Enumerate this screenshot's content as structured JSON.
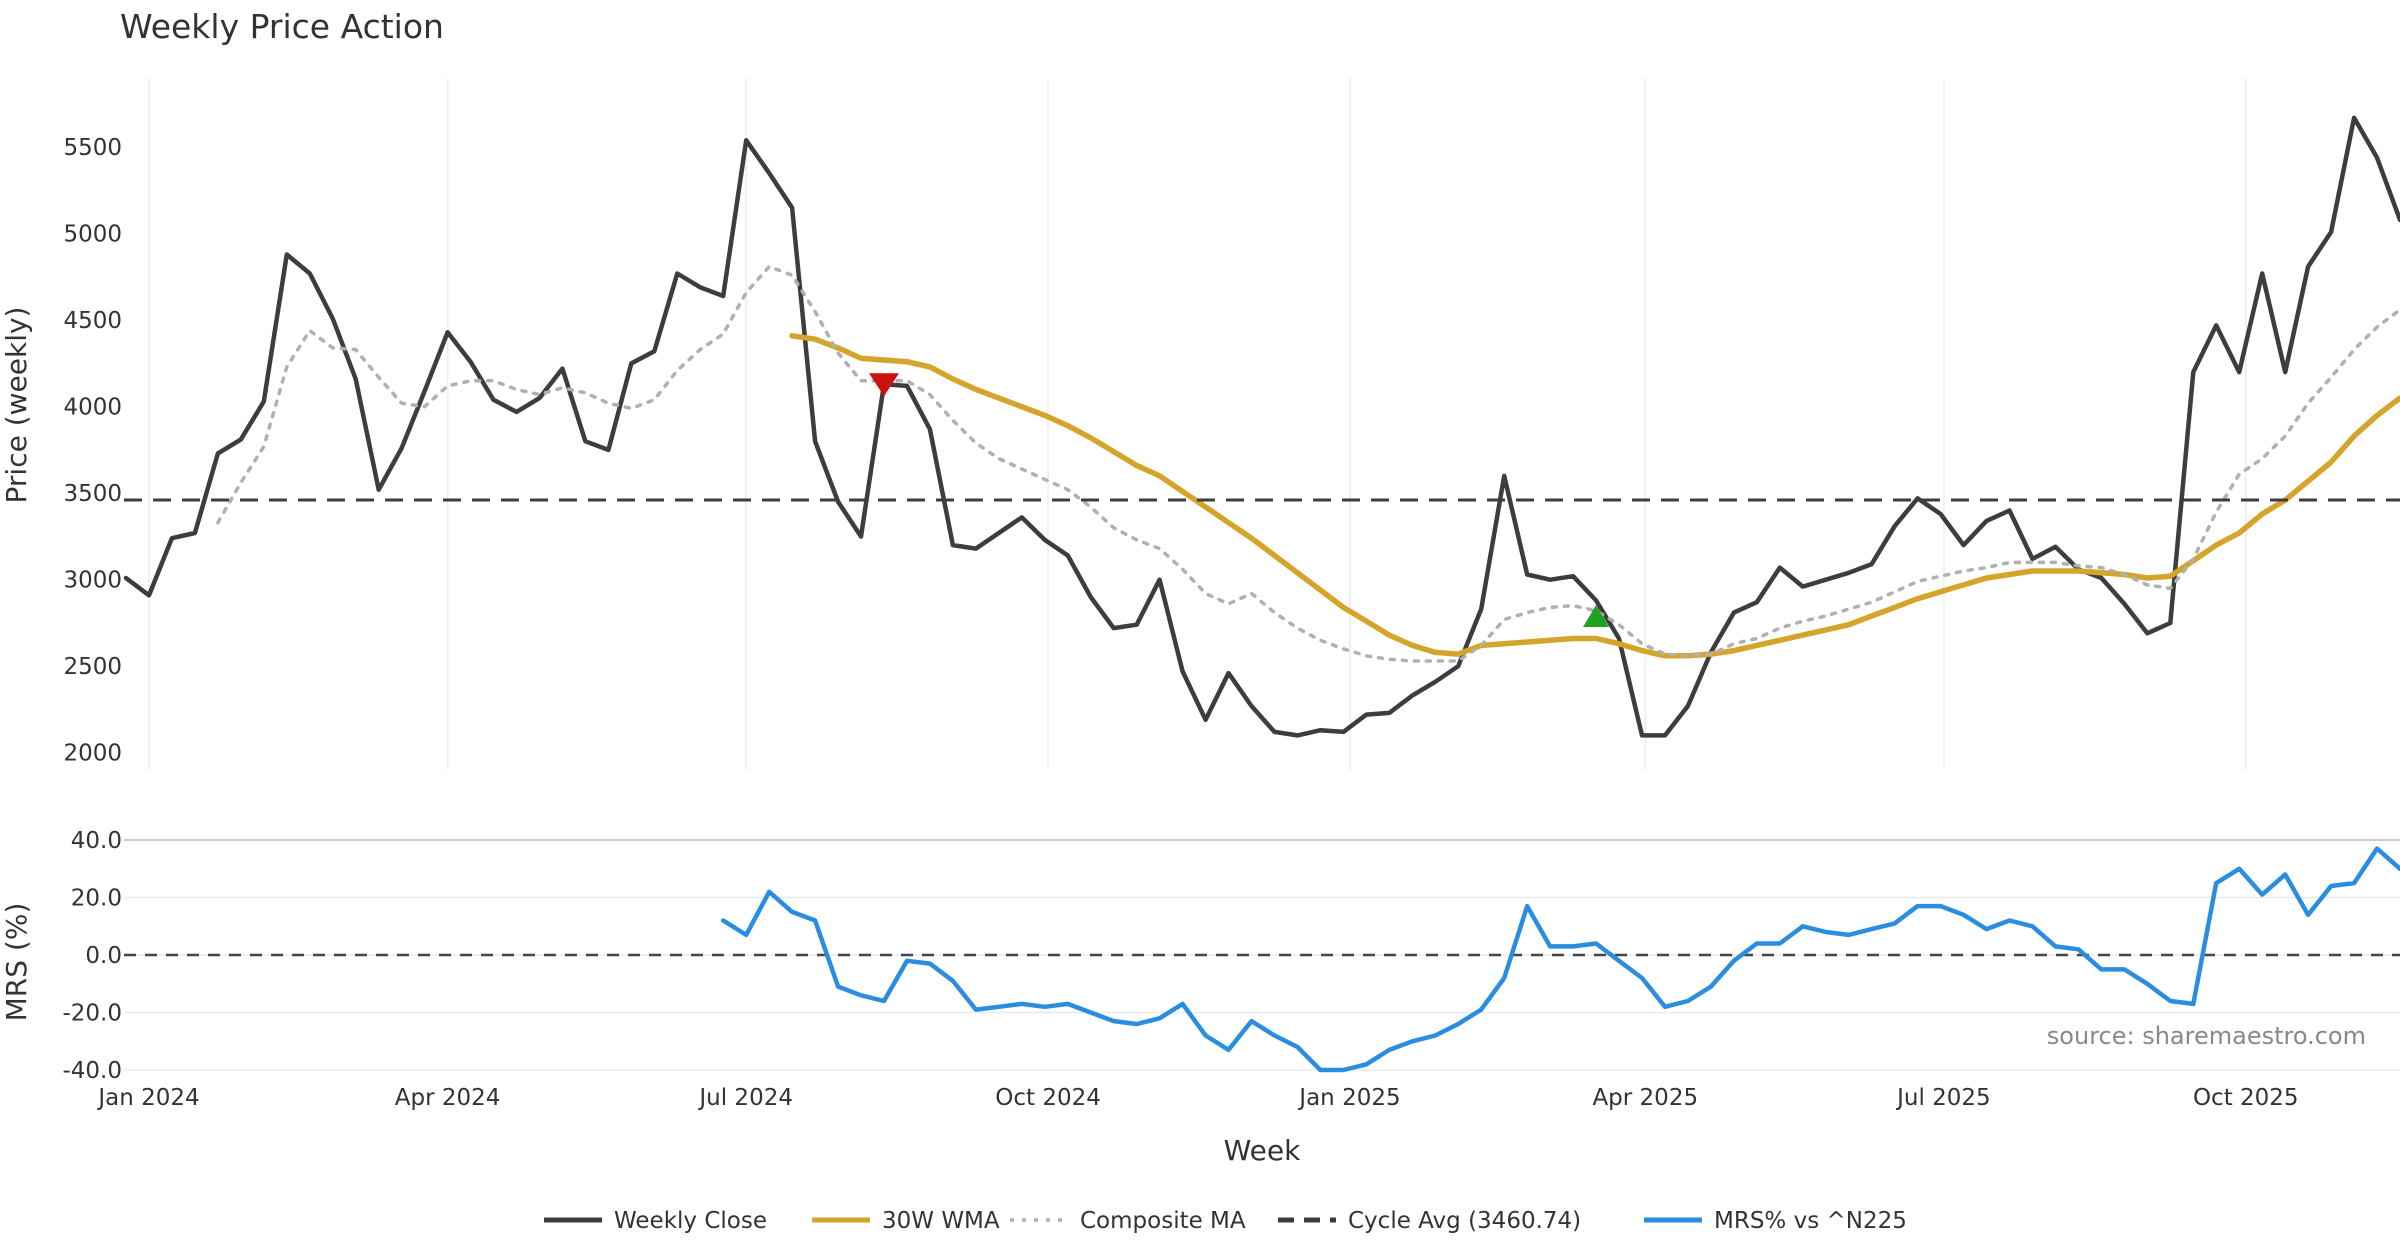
{
  "chart_data": {
    "type": "line",
    "title": "Weekly Price Action",
    "xlabel": "Week",
    "source": "source: sharemaestro.com",
    "x_ticks": [
      "Jan 2024",
      "Apr 2024",
      "Jul 2024",
      "Oct 2024",
      "Jan 2025",
      "Apr 2025",
      "Jul 2025",
      "Oct 2025"
    ],
    "x_range": [
      "2023-12-25",
      "2025-11-17"
    ],
    "x_dates": [
      "2023-12-25",
      "2024-01-01",
      "2024-01-08",
      "2024-01-15",
      "2024-01-22",
      "2024-01-29",
      "2024-02-05",
      "2024-02-12",
      "2024-02-19",
      "2024-02-26",
      "2024-03-04",
      "2024-03-11",
      "2024-03-18",
      "2024-03-25",
      "2024-04-01",
      "2024-04-08",
      "2024-04-15",
      "2024-04-22",
      "2024-04-29",
      "2024-05-06",
      "2024-05-13",
      "2024-05-20",
      "2024-05-27",
      "2024-06-03",
      "2024-06-10",
      "2024-06-17",
      "2024-06-24",
      "2024-07-01",
      "2024-07-08",
      "2024-07-15",
      "2024-07-22",
      "2024-07-29",
      "2024-08-05",
      "2024-08-12",
      "2024-08-19",
      "2024-08-26",
      "2024-09-02",
      "2024-09-09",
      "2024-09-16",
      "2024-09-23",
      "2024-09-30",
      "2024-10-07",
      "2024-10-14",
      "2024-10-21",
      "2024-10-28",
      "2024-11-04",
      "2024-11-11",
      "2024-11-18",
      "2024-11-25",
      "2024-12-02",
      "2024-12-09",
      "2024-12-16",
      "2024-12-23",
      "2024-12-30",
      "2025-01-06",
      "2025-01-13",
      "2025-01-20",
      "2025-01-27",
      "2025-02-03",
      "2025-02-10",
      "2025-02-17",
      "2025-02-24",
      "2025-03-03",
      "2025-03-10",
      "2025-03-17",
      "2025-03-24",
      "2025-03-31",
      "2025-04-07",
      "2025-04-14",
      "2025-04-21",
      "2025-04-28",
      "2025-05-05",
      "2025-05-12",
      "2025-05-19",
      "2025-05-26",
      "2025-06-02",
      "2025-06-09",
      "2025-06-16",
      "2025-06-23",
      "2025-06-30",
      "2025-07-07",
      "2025-07-14",
      "2025-07-21",
      "2025-07-28",
      "2025-08-04",
      "2025-08-11",
      "2025-08-18",
      "2025-08-25",
      "2025-09-01",
      "2025-09-08",
      "2025-09-15",
      "2025-09-22",
      "2025-09-29",
      "2025-10-06",
      "2025-10-13",
      "2025-10-20",
      "2025-10-27",
      "2025-11-03",
      "2025-11-10",
      "2025-11-17"
    ],
    "price_panel": {
      "ylabel": "Price (weekly)",
      "ylim": [
        1900,
        5900
      ],
      "y_ticks": [
        2000,
        2500,
        3000,
        3500,
        4000,
        4500,
        5000,
        5500
      ],
      "series": [
        {
          "name": "Weekly Close",
          "color": "#3d3d3d",
          "style": "solid",
          "values": [
            3010,
            2910,
            3240,
            3270,
            3730,
            3810,
            4030,
            4880,
            4770,
            4510,
            4160,
            3520,
            3760,
            4090,
            4430,
            4260,
            4040,
            3970,
            4050,
            4220,
            3800,
            3750,
            4250,
            4320,
            4770,
            4690,
            4640,
            5540,
            5350,
            5150,
            3800,
            3450,
            3250,
            4130,
            4120,
            3870,
            3200,
            3180,
            3270,
            3360,
            3230,
            3140,
            2900,
            2720,
            2740,
            3000,
            2470,
            2190,
            2460,
            2270,
            2120,
            2100,
            2130,
            2120,
            2220,
            2230,
            2330,
            2410,
            2500,
            2830,
            3600,
            3030,
            3000,
            3020,
            2880,
            2660,
            2100,
            2100,
            2270,
            2580,
            2810,
            2870,
            3070,
            2960,
            3000,
            3040,
            3090,
            3310,
            3470,
            3380,
            3200,
            3340,
            3400,
            3120,
            3190,
            3060,
            3010,
            2860,
            2690,
            2750,
            4200,
            4470,
            4200,
            4770,
            4200,
            4810,
            5010,
            5670,
            5440,
            5080
          ]
        },
        {
          "name": "30W WMA",
          "color": "#d4a52a",
          "style": "solid",
          "values": [
            null,
            null,
            null,
            null,
            null,
            null,
            null,
            null,
            null,
            null,
            null,
            null,
            null,
            null,
            null,
            null,
            null,
            null,
            null,
            null,
            null,
            null,
            null,
            null,
            null,
            null,
            null,
            null,
            null,
            4410,
            4390,
            4340,
            4280,
            4270,
            4260,
            4230,
            4160,
            4100,
            4050,
            4000,
            3950,
            3890,
            3820,
            3740,
            3660,
            3600,
            3510,
            3420,
            3330,
            3240,
            3140,
            3040,
            2940,
            2840,
            2760,
            2680,
            2620,
            2580,
            2570,
            2620,
            2630,
            2640,
            2650,
            2660,
            2660,
            2630,
            2590,
            2560,
            2560,
            2570,
            2590,
            2620,
            2650,
            2680,
            2710,
            2740,
            2790,
            2840,
            2890,
            2930,
            2970,
            3010,
            3030,
            3050,
            3050,
            3050,
            3040,
            3030,
            3010,
            3020,
            3110,
            3200,
            3270,
            3380,
            3460,
            3570,
            3680,
            3830,
            3950,
            4050
          ]
        },
        {
          "name": "Composite MA",
          "color": "#b0b0b0",
          "style": "dotted",
          "values": [
            null,
            null,
            null,
            null,
            3330,
            3560,
            3770,
            4230,
            4440,
            4340,
            4330,
            4170,
            4020,
            4000,
            4120,
            4150,
            4150,
            4100,
            4070,
            4110,
            4080,
            4020,
            3990,
            4040,
            4210,
            4330,
            4420,
            4660,
            4810,
            4760,
            4550,
            4310,
            4150,
            4150,
            4150,
            4070,
            3920,
            3790,
            3700,
            3640,
            3580,
            3520,
            3420,
            3300,
            3230,
            3180,
            3060,
            2920,
            2860,
            2920,
            2810,
            2720,
            2650,
            2600,
            2560,
            2540,
            2530,
            2530,
            2530,
            2620,
            2770,
            2810,
            2840,
            2850,
            2820,
            2740,
            2630,
            2570,
            2560,
            2570,
            2630,
            2660,
            2720,
            2760,
            2790,
            2830,
            2870,
            2930,
            2990,
            3020,
            3050,
            3070,
            3100,
            3100,
            3100,
            3080,
            3070,
            3030,
            2970,
            2950,
            3120,
            3390,
            3610,
            3700,
            3830,
            4020,
            4170,
            4330,
            4460,
            4560
          ]
        },
        {
          "name": "Cycle Avg (3460.74)",
          "color": "#3d3d3d",
          "style": "dashed",
          "constant": 3460.74
        }
      ],
      "annotations": [
        {
          "type": "sell-marker",
          "x": "2024-08-12",
          "y": 4130,
          "color": "#cc1111"
        },
        {
          "type": "buy-marker",
          "x": "2025-03-17",
          "y": 2790,
          "color": "#21a121"
        }
      ]
    },
    "mrs_panel": {
      "ylabel": "MRS (%)",
      "ylim": [
        -40,
        40
      ],
      "y_ticks": [
        -40.0,
        -20.0,
        0.0,
        20.0,
        40.0
      ],
      "y_tick_labels": [
        "-40.0",
        "-20.0",
        "0.0",
        "20.0",
        "40.0"
      ],
      "zero_line": 0,
      "series": [
        {
          "name": "MRS% vs ^N225",
          "color": "#2b8de0",
          "style": "solid",
          "values": [
            null,
            null,
            null,
            null,
            null,
            null,
            null,
            null,
            null,
            null,
            null,
            null,
            null,
            null,
            null,
            null,
            null,
            null,
            null,
            null,
            null,
            null,
            null,
            null,
            null,
            null,
            12,
            7,
            22,
            15,
            12,
            -11,
            -14,
            -16,
            -2,
            -3,
            -9,
            -19,
            -18,
            -17,
            -18,
            -17,
            -20,
            -23,
            -24,
            -22,
            -17,
            -28,
            -33,
            -23,
            -28,
            -32,
            -40,
            -40,
            -38,
            -33,
            -30,
            -28,
            -24,
            -19,
            -8,
            17,
            3,
            3,
            4,
            -2,
            -8,
            -18,
            -16,
            -11,
            -2,
            4,
            4,
            10,
            8,
            7,
            9,
            11,
            17,
            17,
            14,
            9,
            12,
            10,
            3,
            2,
            -5,
            -5,
            -10,
            -16,
            -17,
            25,
            30,
            21,
            28,
            14,
            24,
            25,
            37,
            30
          ]
        }
      ]
    },
    "legend": {
      "placement": "bottom-center",
      "entries": [
        {
          "label": "Weekly Close",
          "color": "#3d3d3d",
          "style": "solid"
        },
        {
          "label": "30W WMA",
          "color": "#d4a52a",
          "style": "solid"
        },
        {
          "label": "Composite MA",
          "color": "#b0b0b0",
          "style": "dotted"
        },
        {
          "label": "Cycle Avg (3460.74)",
          "color": "#3d3d3d",
          "style": "dashed"
        },
        {
          "label": "MRS% vs ^N225",
          "color": "#2b8de0",
          "style": "solid"
        }
      ]
    },
    "grid": true
  }
}
